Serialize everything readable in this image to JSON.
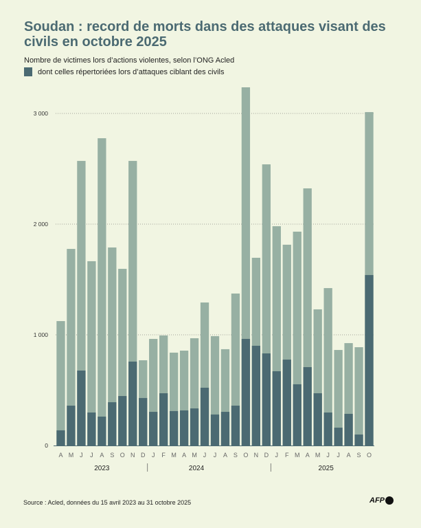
{
  "chart_data": {
    "type": "bar",
    "stacked": "overlay",
    "title": "Soudan : record de morts dans des attaques visant des civils en octobre 2025",
    "categories": [
      "A",
      "M",
      "J",
      "J",
      "A",
      "S",
      "O",
      "N",
      "D",
      "J",
      "F",
      "M",
      "A",
      "M",
      "J",
      "J",
      "A",
      "S",
      "O",
      "N",
      "D",
      "J",
      "F",
      "M",
      "A",
      "M",
      "J",
      "J",
      "A",
      "S",
      "O"
    ],
    "year_labels": [
      "2023",
      "2024",
      "2025"
    ],
    "series": [
      {
        "name": "Nombre de victimes lors d’actions violentes, selon l’ONG Acled",
        "color": "#97b0a3",
        "values": [
          1124,
          1776,
          2571,
          1665,
          2776,
          1789,
          1596,
          2571,
          770,
          963,
          994,
          839,
          857,
          969,
          1292,
          988,
          870,
          1373,
          3236,
          1696,
          2540,
          1981,
          1814,
          1932,
          2323,
          1230,
          1422,
          863,
          925,
          888,
          3012
        ]
      },
      {
        "name": "dont celles répertoriées lors d’attaques ciblant des civils",
        "color": "#4b6a72",
        "values": [
          137,
          360,
          677,
          298,
          261,
          391,
          447,
          758,
          429,
          304,
          472,
          311,
          317,
          335,
          522,
          280,
          304,
          360,
          963,
          901,
          832,
          671,
          776,
          553,
          708,
          472,
          298,
          161,
          286,
          99,
          1540
        ]
      }
    ],
    "yticks": [
      0,
      1000,
      2000,
      3000
    ],
    "ytick_labels": [
      "0",
      "1 000",
      "2 000",
      "3 000"
    ],
    "ylim": [
      0,
      3300
    ],
    "grid": true,
    "legend": "top-left",
    "source": "Source : Acled, données du 15 avril 2023 au 31 octobre 2025",
    "logo": "AFP"
  }
}
